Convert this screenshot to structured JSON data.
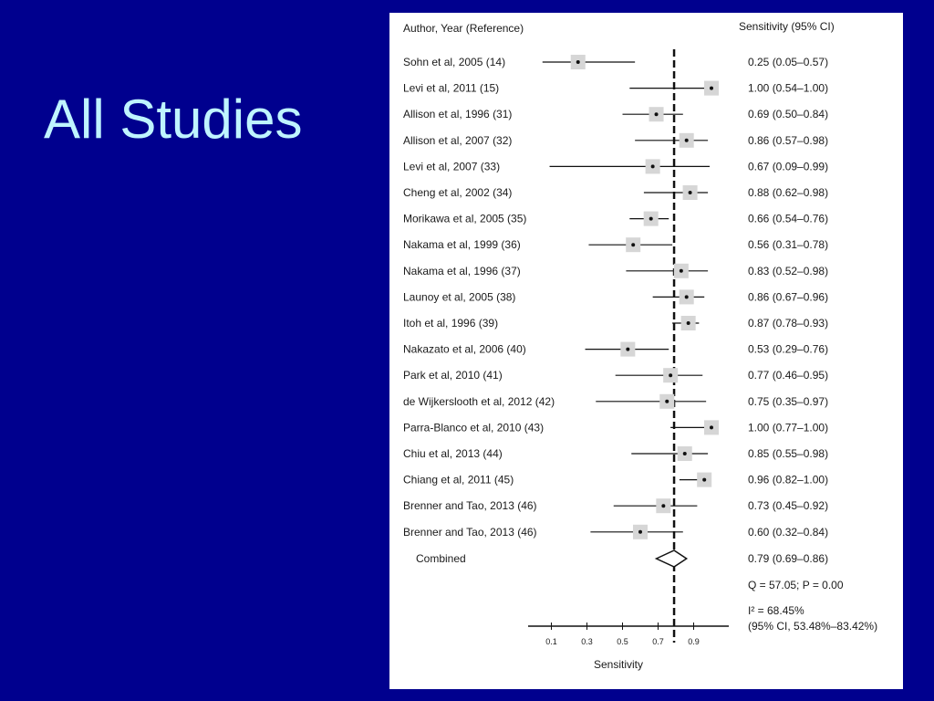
{
  "slide": {
    "title": "All Studies"
  },
  "chart_data": {
    "type": "forest",
    "col_header_left": "Author, Year (Reference)",
    "col_header_right": "Sensitivity (95% CI)",
    "xlabel": "Sensitivity",
    "xticks": [
      "0.1",
      "0.3",
      "0.5",
      "0.7",
      "0.9"
    ],
    "xlim": [
      0,
      1.1
    ],
    "reference_line": 0.79,
    "studies": [
      {
        "label": "Sohn et al, 2005 (14)",
        "est": 0.25,
        "lo": 0.05,
        "hi": 0.57,
        "text": "0.25 (0.05–0.57)"
      },
      {
        "label": "Levi et al, 2011 (15)",
        "est": 1.0,
        "lo": 0.54,
        "hi": 1.0,
        "text": "1.00 (0.54–1.00)"
      },
      {
        "label": "Allison et al, 1996 (31)",
        "est": 0.69,
        "lo": 0.5,
        "hi": 0.84,
        "text": "0.69 (0.50–0.84)"
      },
      {
        "label": "Allison et al, 2007 (32)",
        "est": 0.86,
        "lo": 0.57,
        "hi": 0.98,
        "text": "0.86 (0.57–0.98)"
      },
      {
        "label": "Levi et al, 2007 (33)",
        "est": 0.67,
        "lo": 0.09,
        "hi": 0.99,
        "text": "0.67 (0.09–0.99)"
      },
      {
        "label": "Cheng et al, 2002 (34)",
        "est": 0.88,
        "lo": 0.62,
        "hi": 0.98,
        "text": "0.88 (0.62–0.98)"
      },
      {
        "label": "Morikawa et al, 2005 (35)",
        "est": 0.66,
        "lo": 0.54,
        "hi": 0.76,
        "text": "0.66 (0.54–0.76)"
      },
      {
        "label": "Nakama et al, 1999 (36)",
        "est": 0.56,
        "lo": 0.31,
        "hi": 0.78,
        "text": "0.56 (0.31–0.78)"
      },
      {
        "label": "Nakama et al, 1996 (37)",
        "est": 0.83,
        "lo": 0.52,
        "hi": 0.98,
        "text": "0.83 (0.52–0.98)"
      },
      {
        "label": "Launoy et al, 2005 (38)",
        "est": 0.86,
        "lo": 0.67,
        "hi": 0.96,
        "text": "0.86 (0.67–0.96)"
      },
      {
        "label": "Itoh et al, 1996 (39)",
        "est": 0.87,
        "lo": 0.78,
        "hi": 0.93,
        "text": "0.87 (0.78–0.93)"
      },
      {
        "label": "Nakazato et al, 2006 (40)",
        "est": 0.53,
        "lo": 0.29,
        "hi": 0.76,
        "text": "0.53 (0.29–0.76)"
      },
      {
        "label": "Park et al, 2010 (41)",
        "est": 0.77,
        "lo": 0.46,
        "hi": 0.95,
        "text": "0.77 (0.46–0.95)"
      },
      {
        "label": "de Wijkerslooth et al, 2012 (42)",
        "est": 0.75,
        "lo": 0.35,
        "hi": 0.97,
        "text": "0.75 (0.35–0.97)"
      },
      {
        "label": "Parra-Blanco et al, 2010 (43)",
        "est": 1.0,
        "lo": 0.77,
        "hi": 1.0,
        "text": "1.00 (0.77–1.00)"
      },
      {
        "label": "Chiu et al, 2013 (44)",
        "est": 0.85,
        "lo": 0.55,
        "hi": 0.98,
        "text": "0.85 (0.55–0.98)"
      },
      {
        "label": "Chiang et al, 2011 (45)",
        "est": 0.96,
        "lo": 0.82,
        "hi": 1.0,
        "text": "0.96 (0.82–1.00)"
      },
      {
        "label": "Brenner and Tao, 2013 (46)",
        "est": 0.73,
        "lo": 0.45,
        "hi": 0.92,
        "text": "0.73 (0.45–0.92)"
      },
      {
        "label": "Brenner and Tao, 2013 (46)",
        "est": 0.6,
        "lo": 0.32,
        "hi": 0.84,
        "text": "0.60 (0.32–0.84)"
      }
    ],
    "combined": {
      "label": "Combined",
      "est": 0.79,
      "lo": 0.69,
      "hi": 0.86,
      "text": "0.79 (0.69–0.86)"
    },
    "heterogeneity": {
      "q_text": "Q = 57.05; P = 0.00",
      "i2_text": "I² = 68.45%",
      "ci_text": "(95% CI, 53.48%–83.42%)"
    }
  }
}
